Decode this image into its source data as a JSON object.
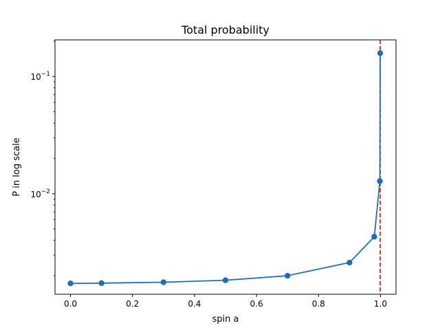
{
  "chart_data": {
    "type": "line",
    "title": "Total probability",
    "xlabel": "spin a",
    "ylabel": "P in log scale",
    "xlim": [
      -0.05,
      1.05
    ],
    "ylim": [
      0.00139,
      0.205
    ],
    "yscale": "log",
    "grid": false,
    "x_ticks": [
      0.0,
      0.2,
      0.4,
      0.6,
      0.8,
      1.0
    ],
    "x_tick_labels": [
      "0.0",
      "0.2",
      "0.4",
      "0.6",
      "0.8",
      "1.0"
    ],
    "y_ticks": [
      0.01,
      0.1
    ],
    "y_tick_labels": [
      {
        "base": "10",
        "exp": "−2"
      },
      {
        "base": "10",
        "exp": "−1"
      }
    ],
    "y_minor_ticks": [
      0.002,
      0.003,
      0.004,
      0.005,
      0.006,
      0.007,
      0.008,
      0.009,
      0.02,
      0.03,
      0.04,
      0.05,
      0.06,
      0.07,
      0.08,
      0.09,
      0.2
    ],
    "series": [
      {
        "color": "#1f6eb4",
        "marker": "circle",
        "x": [
          0.0,
          0.1,
          0.3,
          0.5,
          0.7,
          0.9,
          0.98,
          0.998,
          0.999
        ],
        "y": [
          0.00172,
          0.00173,
          0.00176,
          0.00183,
          0.002,
          0.00259,
          0.0043,
          0.0128,
          0.158
        ]
      }
    ],
    "vline": {
      "x": 0.999,
      "color": "#d62728",
      "style": "dashed"
    }
  }
}
